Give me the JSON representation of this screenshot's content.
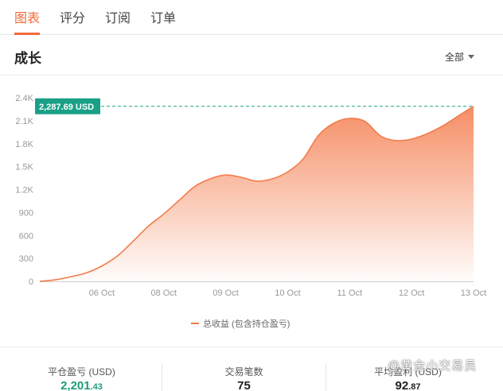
{
  "tabs": [
    {
      "label": "图表",
      "active": true
    },
    {
      "label": "评分",
      "active": false
    },
    {
      "label": "订阅",
      "active": false
    },
    {
      "label": "订单",
      "active": false
    }
  ],
  "section": {
    "title": "成长",
    "filter_label": "全部"
  },
  "chart_data": {
    "type": "area",
    "x_ticks": [
      "06 Oct",
      "08 Oct",
      "09 Oct",
      "10 Oct",
      "11 Oct",
      "12 Oct",
      "13 Oct"
    ],
    "y_ticks": [
      "0",
      "300",
      "600",
      "900",
      "1.2K",
      "1.5K",
      "1.8K",
      "2.1K",
      "2.4K"
    ],
    "ylim": [
      0,
      2400
    ],
    "series": [
      {
        "name": "总收益 (包含持仓盈亏)",
        "color": "#f47a4a",
        "points": [
          [
            0,
            0
          ],
          [
            0.3,
            20
          ],
          [
            0.6,
            60
          ],
          [
            0.9,
            110
          ],
          [
            1.2,
            200
          ],
          [
            1.5,
            330
          ],
          [
            1.8,
            520
          ],
          [
            2.1,
            720
          ],
          [
            2.4,
            880
          ],
          [
            2.7,
            1060
          ],
          [
            3.0,
            1240
          ],
          [
            3.3,
            1340
          ],
          [
            3.6,
            1390
          ],
          [
            3.9,
            1360
          ],
          [
            4.2,
            1310
          ],
          [
            4.5,
            1340
          ],
          [
            4.8,
            1430
          ],
          [
            5.1,
            1600
          ],
          [
            5.4,
            1910
          ],
          [
            5.7,
            2070
          ],
          [
            6.0,
            2130
          ],
          [
            6.3,
            2090
          ],
          [
            6.6,
            1900
          ],
          [
            6.9,
            1840
          ],
          [
            7.2,
            1860
          ],
          [
            7.5,
            1930
          ],
          [
            7.8,
            2030
          ],
          [
            8.1,
            2160
          ],
          [
            8.4,
            2287.69
          ]
        ]
      }
    ],
    "current_value_label": "2,287.69 USD",
    "current_value": 2287.69,
    "accent_color": "#1aa087",
    "legend_position": "bottom-center",
    "grid": false
  },
  "stats": [
    {
      "label": "平仓盈亏 (USD)",
      "int": "2,201",
      "dec": ".43",
      "positive": true
    },
    {
      "label": "交易笔数",
      "int": "75",
      "dec": ""
    },
    {
      "label": "平均盈利 (USD)",
      "int": "92",
      "dec": ".87"
    }
  ],
  "watermark": "@黄金小交易员"
}
